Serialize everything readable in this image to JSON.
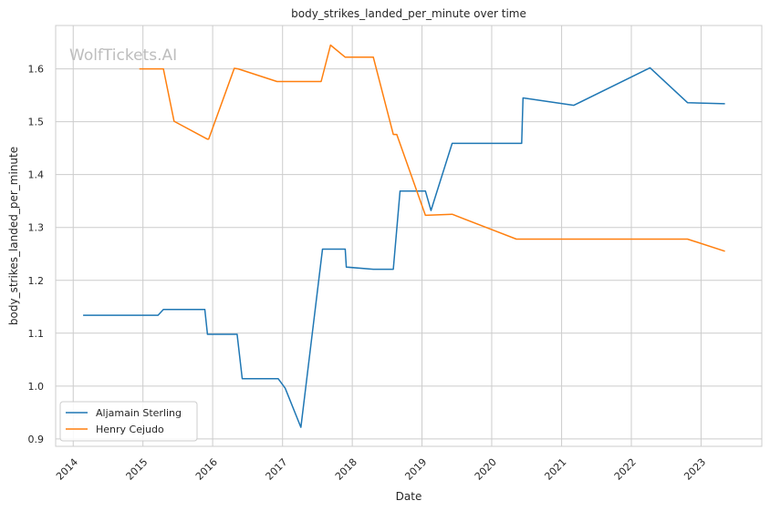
{
  "watermark": "WolfTickets.AI",
  "chart_data": {
    "type": "line",
    "title": "body_strikes_landed_per_minute over time",
    "xlabel": "Date",
    "ylabel": "body_strikes_landed_per_minute",
    "xlim": [
      "2013-10-01",
      "2023-11-15"
    ],
    "ylim": [
      0.886,
      1.682
    ],
    "x_ticks": [
      "2014",
      "2015",
      "2016",
      "2017",
      "2018",
      "2019",
      "2020",
      "2021",
      "2022",
      "2023"
    ],
    "y_ticks": [
      0.9,
      1.0,
      1.1,
      1.2,
      1.3,
      1.4,
      1.5,
      1.6
    ],
    "grid": true,
    "legend_position": "lower-left",
    "series": [
      {
        "name": "Aljamain Sterling",
        "color": "#1f77b4",
        "points": [
          {
            "x": "2014-02-22",
            "y": 1.134
          },
          {
            "x": "2015-03-21",
            "y": 1.134
          },
          {
            "x": "2015-04-18",
            "y": 1.145
          },
          {
            "x": "2015-11-21",
            "y": 1.145
          },
          {
            "x": "2015-12-05",
            "y": 1.098
          },
          {
            "x": "2016-05-08",
            "y": 1.098
          },
          {
            "x": "2016-06-04",
            "y": 1.014
          },
          {
            "x": "2016-12-09",
            "y": 1.014
          },
          {
            "x": "2017-01-15",
            "y": 0.996
          },
          {
            "x": "2017-04-07",
            "y": 0.922
          },
          {
            "x": "2017-07-29",
            "y": 1.259
          },
          {
            "x": "2017-11-25",
            "y": 1.259
          },
          {
            "x": "2017-12-01",
            "y": 1.225
          },
          {
            "x": "2018-04-21",
            "y": 1.221
          },
          {
            "x": "2018-08-04",
            "y": 1.221
          },
          {
            "x": "2018-09-08",
            "y": 1.369
          },
          {
            "x": "2019-01-19",
            "y": 1.369
          },
          {
            "x": "2019-02-17",
            "y": 1.332
          },
          {
            "x": "2019-06-08",
            "y": 1.459
          },
          {
            "x": "2020-06-06",
            "y": 1.459
          },
          {
            "x": "2020-06-13",
            "y": 1.545
          },
          {
            "x": "2021-03-06",
            "y": 1.531
          },
          {
            "x": "2022-04-09",
            "y": 1.602
          },
          {
            "x": "2022-10-22",
            "y": 1.536
          },
          {
            "x": "2023-05-06",
            "y": 1.534
          }
        ]
      },
      {
        "name": "Henry Cejudo",
        "color": "#ff7f0e",
        "points": [
          {
            "x": "2014-12-13",
            "y": 1.6
          },
          {
            "x": "2015-04-18",
            "y": 1.6
          },
          {
            "x": "2015-06-13",
            "y": 1.501
          },
          {
            "x": "2015-12-05",
            "y": 1.467
          },
          {
            "x": "2015-12-11",
            "y": 1.467
          },
          {
            "x": "2016-04-23",
            "y": 1.601
          },
          {
            "x": "2016-05-14",
            "y": 1.6
          },
          {
            "x": "2016-12-03",
            "y": 1.576
          },
          {
            "x": "2017-07-22",
            "y": 1.576
          },
          {
            "x": "2017-09-09",
            "y": 1.645
          },
          {
            "x": "2017-11-25",
            "y": 1.622
          },
          {
            "x": "2018-04-21",
            "y": 1.622
          },
          {
            "x": "2018-08-04",
            "y": 1.476
          },
          {
            "x": "2018-08-22",
            "y": 1.476
          },
          {
            "x": "2019-01-19",
            "y": 1.323
          },
          {
            "x": "2019-06-08",
            "y": 1.325
          },
          {
            "x": "2020-05-09",
            "y": 1.278
          },
          {
            "x": "2022-10-22",
            "y": 1.278
          },
          {
            "x": "2023-05-06",
            "y": 1.255
          }
        ]
      }
    ]
  }
}
